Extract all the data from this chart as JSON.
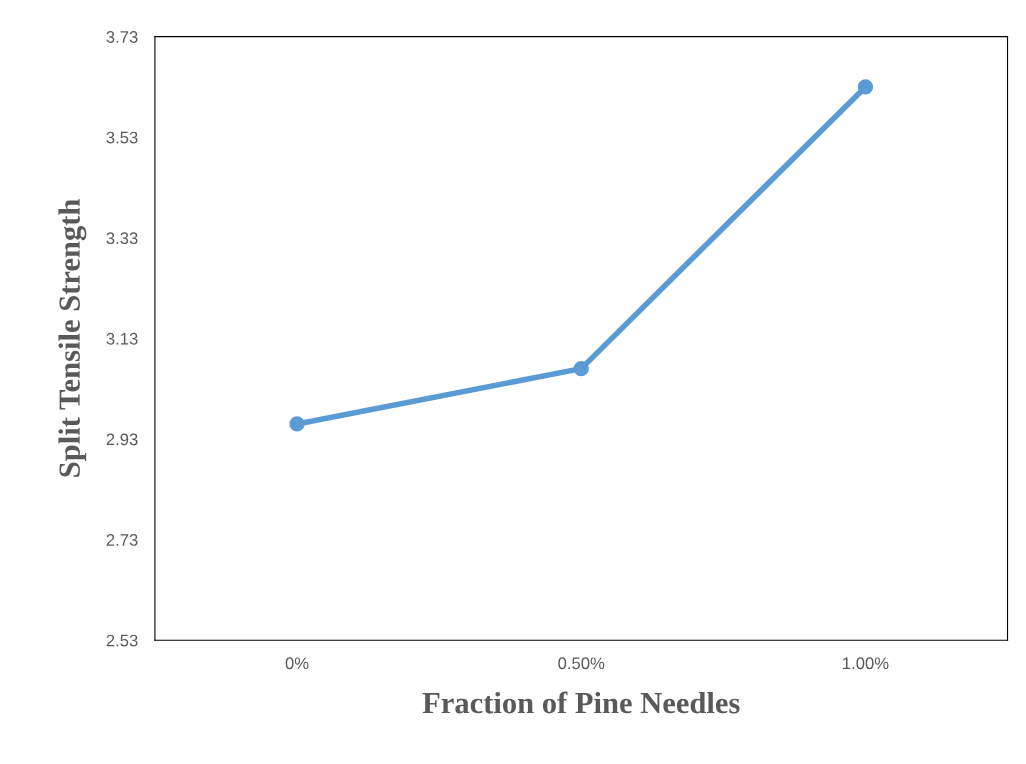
{
  "chart_data": {
    "type": "line",
    "xlabel": "Fraction of Pine Needles",
    "ylabel": "Split Tensile Strength",
    "categories": [
      "0%",
      "0.50%",
      "1.00%"
    ],
    "series": [
      {
        "color": "#5b9bd5",
        "values": [
          2.96,
          3.07,
          3.63
        ]
      }
    ],
    "ylim": [
      2.53,
      3.73
    ],
    "yticks": [
      2.53,
      2.73,
      2.93,
      3.13,
      3.33,
      3.53,
      3.73
    ],
    "grid": false,
    "legend": false,
    "marker": "circle",
    "line_style": "solid"
  }
}
